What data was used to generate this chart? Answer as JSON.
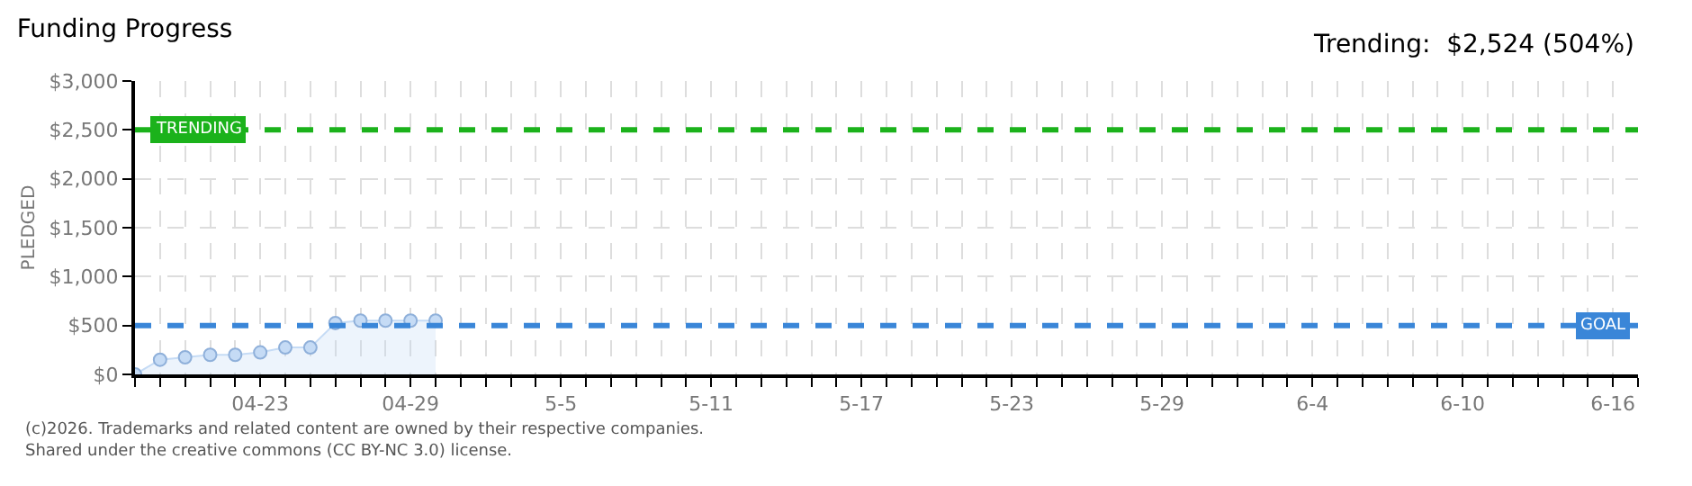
{
  "chart_data": {
    "type": "area",
    "title": "Funding Progress",
    "subtitle": "Trending:  $2,524 (504%)",
    "ylabel": "PLEDGED",
    "annotations": [
      "(c)2026. Trademarks and related content are owned by their respective companies.",
      "Shared under the creative commons (CC BY-NC 3.0) license."
    ],
    "x": [
      "2026-04-18",
      "2026-04-19",
      "2026-04-20",
      "2026-04-21",
      "2026-04-22",
      "2026-04-23",
      "2026-04-24",
      "2026-04-25",
      "2026-04-26",
      "2026-04-27",
      "2026-04-28",
      "2026-04-29",
      "2026-04-30"
    ],
    "series": [
      {
        "color": "#c5dbf5",
        "values": [
          0,
          150,
          175,
          200,
          200,
          225,
          275,
          275,
          525,
          550,
          550,
          550,
          550
        ]
      }
    ],
    "marker": "circle",
    "grid": true,
    "ylim": [
      0,
      3000
    ],
    "yticks": [
      {
        "value": 0,
        "label": "$0"
      },
      {
        "value": 500,
        "label": "$500"
      },
      {
        "value": 1000,
        "label": "$1,000"
      },
      {
        "value": 1500,
        "label": "$1,500"
      },
      {
        "value": 2000,
        "label": "$2,000"
      },
      {
        "value": 2500,
        "label": "$2,500"
      },
      {
        "value": 3000,
        "label": "$3,000"
      }
    ],
    "xlim": [
      "2026-04-18",
      "2026-06-17"
    ],
    "xticks": [
      {
        "value": "2026-04-18",
        "label": null
      },
      {
        "value": "2026-04-19",
        "label": null
      },
      {
        "value": "2026-04-20",
        "label": null
      },
      {
        "value": "2026-04-21",
        "label": null
      },
      {
        "value": "2026-04-22",
        "label": null
      },
      {
        "value": "2026-04-23",
        "label": "04-23"
      },
      {
        "value": "2026-04-24",
        "label": null
      },
      {
        "value": "2026-04-25",
        "label": null
      },
      {
        "value": "2026-04-26",
        "label": null
      },
      {
        "value": "2026-04-27",
        "label": null
      },
      {
        "value": "2026-04-28",
        "label": null
      },
      {
        "value": "2026-04-29",
        "label": "04-29"
      },
      {
        "value": "2026-04-30",
        "label": null
      },
      {
        "value": "2026-05-01",
        "label": null
      },
      {
        "value": "2026-05-02",
        "label": null
      },
      {
        "value": "2026-05-03",
        "label": null
      },
      {
        "value": "2026-05-04",
        "label": null
      },
      {
        "value": "2026-05-05",
        "label": "5-5"
      },
      {
        "value": "2026-05-06",
        "label": null
      },
      {
        "value": "2026-05-07",
        "label": null
      },
      {
        "value": "2026-05-08",
        "label": null
      },
      {
        "value": "2026-05-09",
        "label": null
      },
      {
        "value": "2026-05-10",
        "label": null
      },
      {
        "value": "2026-05-11",
        "label": "5-11"
      },
      {
        "value": "2026-05-12",
        "label": null
      },
      {
        "value": "2026-05-13",
        "label": null
      },
      {
        "value": "2026-05-14",
        "label": null
      },
      {
        "value": "2026-05-15",
        "label": null
      },
      {
        "value": "2026-05-16",
        "label": null
      },
      {
        "value": "2026-05-17",
        "label": "5-17"
      },
      {
        "value": "2026-05-18",
        "label": null
      },
      {
        "value": "2026-05-19",
        "label": null
      },
      {
        "value": "2026-05-20",
        "label": null
      },
      {
        "value": "2026-05-21",
        "label": null
      },
      {
        "value": "2026-05-22",
        "label": null
      },
      {
        "value": "2026-05-23",
        "label": "5-23"
      },
      {
        "value": "2026-05-24",
        "label": null
      },
      {
        "value": "2026-05-25",
        "label": null
      },
      {
        "value": "2026-05-26",
        "label": null
      },
      {
        "value": "2026-05-27",
        "label": null
      },
      {
        "value": "2026-05-28",
        "label": null
      },
      {
        "value": "2026-05-29",
        "label": "5-29"
      },
      {
        "value": "2026-05-30",
        "label": null
      },
      {
        "value": "2026-05-31",
        "label": null
      },
      {
        "value": "2026-06-01",
        "label": null
      },
      {
        "value": "2026-06-02",
        "label": null
      },
      {
        "value": "2026-06-03",
        "label": null
      },
      {
        "value": "2026-06-04",
        "label": "6-4"
      },
      {
        "value": "2026-06-05",
        "label": null
      },
      {
        "value": "2026-06-06",
        "label": null
      },
      {
        "value": "2026-06-07",
        "label": null
      },
      {
        "value": "2026-06-08",
        "label": null
      },
      {
        "value": "2026-06-09",
        "label": null
      },
      {
        "value": "2026-06-10",
        "label": "6-10"
      },
      {
        "value": "2026-06-11",
        "label": null
      },
      {
        "value": "2026-06-12",
        "label": null
      },
      {
        "value": "2026-06-13",
        "label": null
      },
      {
        "value": "2026-06-14",
        "label": null
      },
      {
        "value": "2026-06-15",
        "label": null
      },
      {
        "value": "2026-06-16",
        "label": "6-16"
      },
      {
        "value": "2026-06-17",
        "label": null
      }
    ],
    "ref_lines": [
      {
        "axis": "y",
        "value": 2500,
        "label": "TRENDING",
        "color": "#1bb21b",
        "line_style": "dashed"
      },
      {
        "axis": "y",
        "value": 500,
        "label": "GOAL",
        "color": "#3a86d8",
        "line_style": "dashed"
      }
    ]
  }
}
